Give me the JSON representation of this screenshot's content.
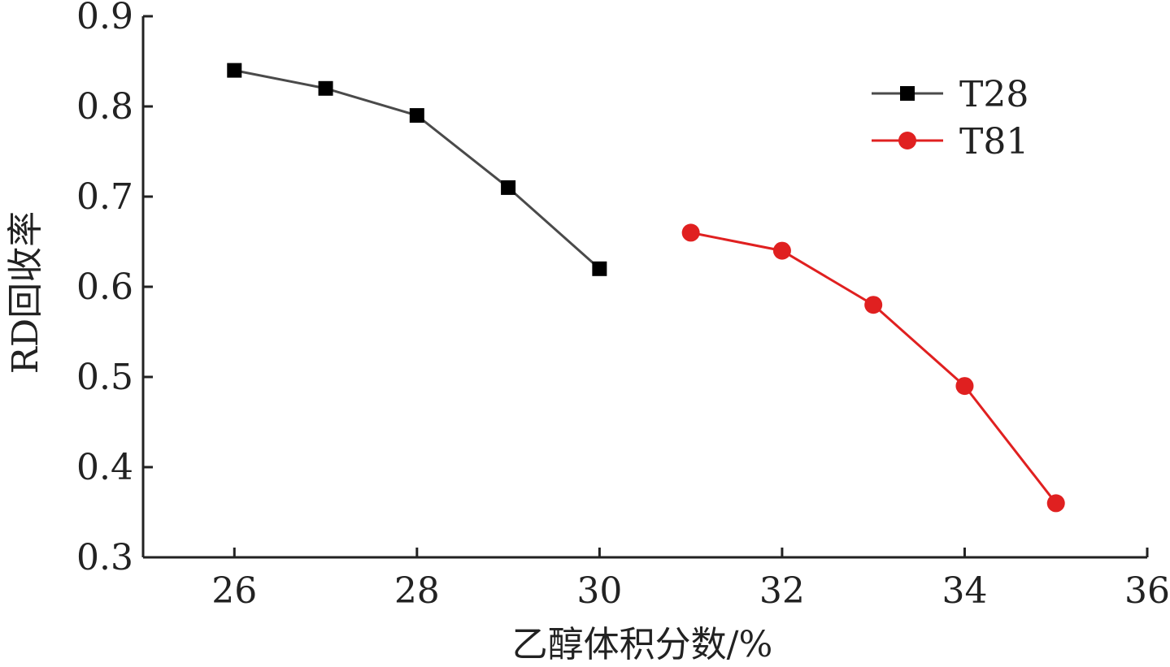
{
  "chart_data": {
    "type": "line",
    "xlabel": "乙醇体积分数/%",
    "ylabel": "RD回收率",
    "xlim": [
      25,
      36
    ],
    "ylim": [
      0.3,
      0.9
    ],
    "x_ticks": [
      "26",
      "28",
      "30",
      "32",
      "34",
      "36"
    ],
    "y_ticks": [
      "0.3",
      "0.4",
      "0.5",
      "0.6",
      "0.7",
      "0.8",
      "0.9"
    ],
    "legend_position": "top-right",
    "series": [
      {
        "name": "T28",
        "color": "#4a4a4a",
        "marker": "square",
        "marker_color": "#000000",
        "x": [
          26,
          27,
          28,
          29,
          30
        ],
        "y": [
          0.84,
          0.82,
          0.79,
          0.71,
          0.62
        ]
      },
      {
        "name": "T81",
        "color": "#e02020",
        "marker": "circle",
        "marker_color": "#e02020",
        "x": [
          31,
          32,
          33,
          34,
          35
        ],
        "y": [
          0.66,
          0.64,
          0.58,
          0.49,
          0.36
        ]
      }
    ]
  }
}
